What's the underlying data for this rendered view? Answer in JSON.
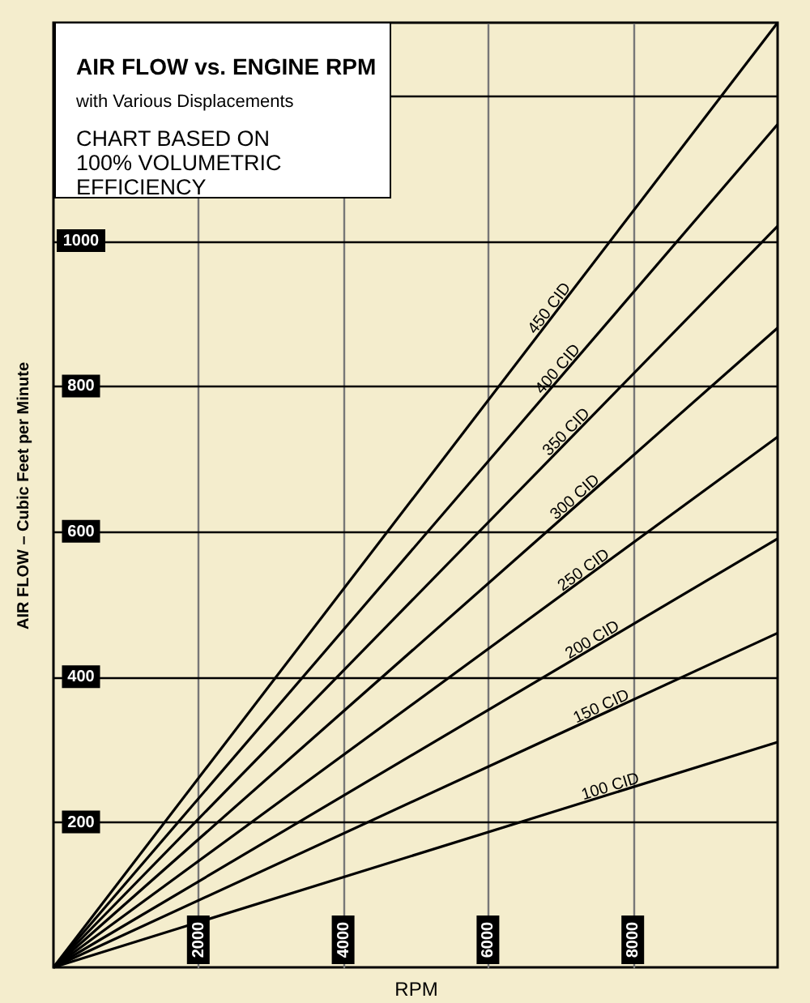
{
  "chart_data": {
    "type": "line",
    "title": "AIR FLOW vs. ENGINE RPM",
    "subtitle": "with Various Displacements",
    "annotations": [
      "CHART BASED ON 100% VOLUMETRIC EFFICIENCY"
    ],
    "xlabel": "RPM",
    "ylabel": "AIR FLOW – Cubic Feet per Minute",
    "x": [
      0,
      10000
    ],
    "series": [
      {
        "name": "100 CID",
        "color": "#000000",
        "values": [
          0,
          310
        ]
      },
      {
        "name": "150 CID",
        "color": "#000000",
        "values": [
          0,
          460
        ]
      },
      {
        "name": "200 CID",
        "color": "#000000",
        "values": [
          0,
          590
        ]
      },
      {
        "name": "250 CID",
        "color": "#000000",
        "values": [
          0,
          730
        ]
      },
      {
        "name": "300 CID",
        "color": "#000000",
        "values": [
          0,
          880
        ]
      },
      {
        "name": "350 CID",
        "color": "#000000",
        "values": [
          0,
          1020
        ]
      },
      {
        "name": "400 CID",
        "color": "#000000",
        "values": [
          0,
          1160
        ]
      },
      {
        "name": "450 CID",
        "color": "#000000",
        "values": [
          0,
          1300
        ]
      }
    ],
    "xlim": [
      0,
      10000
    ],
    "ylim": [
      0,
      1300
    ],
    "xticks": [
      2000,
      4000,
      6000,
      8000
    ],
    "yticks": [
      200,
      400,
      600,
      800,
      1000,
      {
        "value": 1200,
        "label": null
      }
    ],
    "grid": true,
    "marker": "none",
    "line_style": "solid"
  }
}
